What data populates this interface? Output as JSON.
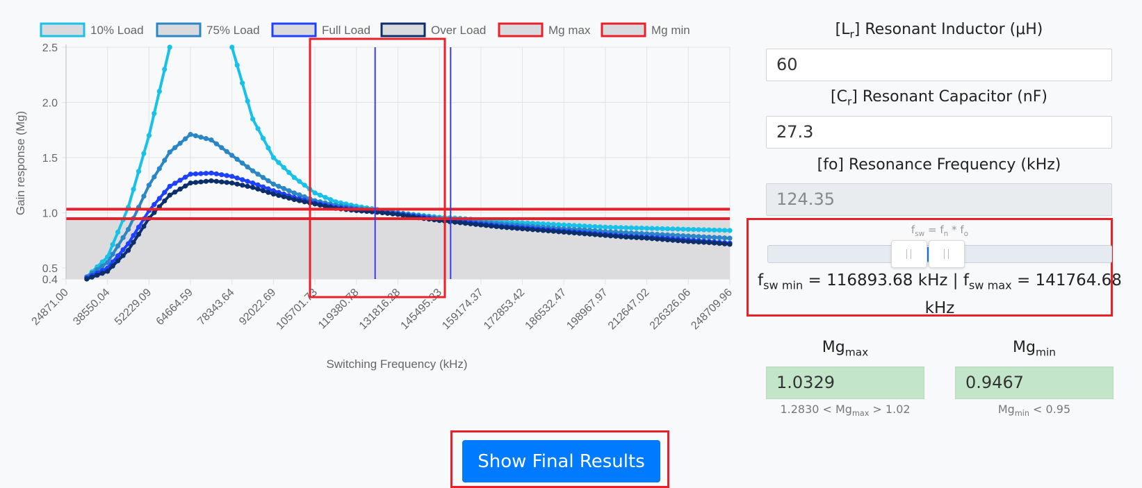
{
  "chart_data": {
    "type": "line",
    "title": "",
    "xlabel": "Switching Frequency (kHz)",
    "ylabel": "Gain response (Mg)",
    "ylim": [
      0.4,
      2.5
    ],
    "y_ticks": [
      "0.4",
      "0.5",
      "1.0",
      "1.5",
      "2.0",
      "2.5"
    ],
    "x_ticks": [
      "24871.00",
      "38550.04",
      "52229.09",
      "64664.59",
      "78343.64",
      "92022.69",
      "105701.73",
      "119380.78",
      "131816.28",
      "145495.33",
      "159174.37",
      "172853.42",
      "186532.47",
      "198967.97",
      "212647.02",
      "226326.06",
      "248709.96"
    ],
    "grid": true,
    "legend_position": "top",
    "x": [
      0,
      0.5,
      1,
      1.5,
      2,
      2.5,
      3,
      3.5,
      4,
      4.5,
      5,
      5.5,
      6,
      6.5,
      7,
      7.5,
      8,
      8.5,
      9,
      9.5,
      10,
      10.5,
      11,
      11.5,
      12,
      12.5,
      13,
      13.5,
      14,
      14.5,
      15,
      15.5,
      16
    ],
    "series": [
      {
        "name": "10% Load",
        "color": "#17c1e8",
        "values": [
          null,
          0.42,
          0.6,
          1.05,
          1.7,
          2.5,
          null,
          null,
          2.5,
          1.85,
          1.5,
          1.32,
          1.18,
          1.1,
          1.06,
          1.03,
          1.0,
          0.98,
          0.96,
          0.95,
          0.935,
          0.92,
          0.91,
          0.9,
          0.89,
          0.88,
          0.87,
          0.865,
          0.86,
          0.855,
          0.85,
          0.845,
          0.84
        ]
      },
      {
        "name": "75% Load",
        "color": "#2a86c4",
        "values": [
          null,
          0.42,
          0.55,
          0.85,
          1.25,
          1.55,
          1.71,
          1.66,
          1.52,
          1.38,
          1.26,
          1.18,
          1.11,
          1.07,
          1.04,
          1.02,
          1.0,
          0.975,
          0.95,
          0.935,
          0.915,
          0.9,
          0.885,
          0.87,
          0.855,
          0.845,
          0.83,
          0.82,
          0.81,
          0.8,
          0.79,
          0.78,
          0.77
        ]
      },
      {
        "name": "Full Load",
        "color": "#1e40ff",
        "values": [
          null,
          0.41,
          0.5,
          0.72,
          1.02,
          1.24,
          1.35,
          1.36,
          1.33,
          1.27,
          1.2,
          1.14,
          1.09,
          1.05,
          1.03,
          1.01,
          0.99,
          0.965,
          0.94,
          0.92,
          0.9,
          0.88,
          0.865,
          0.85,
          0.835,
          0.82,
          0.805,
          0.79,
          0.78,
          0.77,
          0.755,
          0.74,
          0.725
        ]
      },
      {
        "name": "Over Load",
        "color": "#0c2f6b",
        "values": [
          null,
          0.4,
          0.47,
          0.66,
          0.95,
          1.16,
          1.27,
          1.29,
          1.27,
          1.23,
          1.17,
          1.12,
          1.08,
          1.04,
          1.02,
          1.005,
          0.985,
          0.955,
          0.93,
          0.91,
          0.89,
          0.87,
          0.855,
          0.84,
          0.825,
          0.81,
          0.795,
          0.78,
          0.77,
          0.755,
          0.74,
          0.73,
          0.715
        ]
      }
    ],
    "mg_lines": [
      {
        "name": "Mg max",
        "color": "#e8202a",
        "value": 1.0329
      },
      {
        "name": "Mg min",
        "color": "#e8202a",
        "value": 0.9467
      }
    ],
    "vertical_markers_x": [
      7.45,
      9.27
    ],
    "shaded_below": 0.9467
  },
  "legend": {
    "items": [
      {
        "label": "10% Load",
        "border": "#17c1e8",
        "fill": "#d9dadd"
      },
      {
        "label": "75% Load",
        "border": "#2a86c4",
        "fill": "#d9dadd"
      },
      {
        "label": "Full Load",
        "border": "#1e40ff",
        "fill": "#d9dadd"
      },
      {
        "label": "Over Load",
        "border": "#0c2f6b",
        "fill": "#d9dadd"
      },
      {
        "label": "Mg max",
        "border": "#e8202a",
        "fill": "#d9dadd"
      },
      {
        "label": "Mg min",
        "border": "#e8202a",
        "fill": "#d9dadd"
      }
    ]
  },
  "form": {
    "lr_label_prefix": "[L",
    "lr_label_sub": "r",
    "lr_label_suffix": "] Resonant Inductor (μH)",
    "lr_value": "60",
    "cr_label_prefix": "[C",
    "cr_label_sub": "r",
    "cr_label_suffix": "] Resonant Capacitor (nF)",
    "cr_value": "27.3",
    "fo_label": "[fo] Resonance Frequency (kHz)",
    "fo_value": "124.35",
    "fsw_eq_f": "f",
    "fsw_eq_sw": "sw",
    "fsw_eq_mid": " = f",
    "fsw_eq_n": "n",
    "fsw_eq_mid2": " * f",
    "fsw_eq_o": "o",
    "fsw_min_f": "f",
    "fsw_min_sub": "sw min",
    "fsw_min_val": " = 116893.68 kHz | ",
    "fsw_max_f": "f",
    "fsw_max_sub": "sw max",
    "fsw_max_val": " = 141764.68 kHz",
    "mgmax_label_base": "Mg",
    "mgmax_label_sub": "max",
    "mgmax_value": "1.0329",
    "mgmax_hint_a": "1.2830 < Mg",
    "mgmax_hint_sub": "max",
    "mgmax_hint_b": " > 1.02",
    "mgmin_label_base": "Mg",
    "mgmin_label_sub": "min",
    "mgmin_value": "0.9467",
    "mgmin_hint_a": "Mg",
    "mgmin_hint_sub": "min",
    "mgmin_hint_b": " < 0.95",
    "slider_value_min": 116893.68,
    "slider_value_max": 141764.68
  },
  "actions": {
    "show_final_label": "Show Final Results"
  }
}
